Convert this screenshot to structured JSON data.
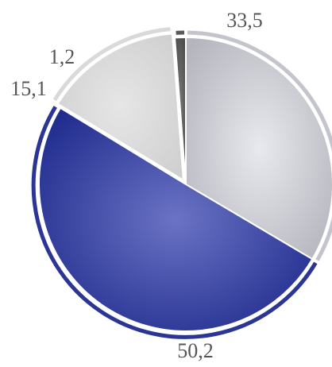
{
  "chart_data": {
    "type": "pie",
    "slices": [
      {
        "value": 33.5,
        "label": "33,5",
        "color": "#c4c5cc"
      },
      {
        "value": 50.2,
        "label": "50,2",
        "color": "#2a3594"
      },
      {
        "value": 15.1,
        "label": "15,1",
        "color": "#d9d9d9"
      },
      {
        "value": 1.2,
        "label": "1,2",
        "color": "#5a5a5a"
      }
    ],
    "start": "12 o'clock",
    "direction": "clockwise",
    "legend": "none"
  }
}
